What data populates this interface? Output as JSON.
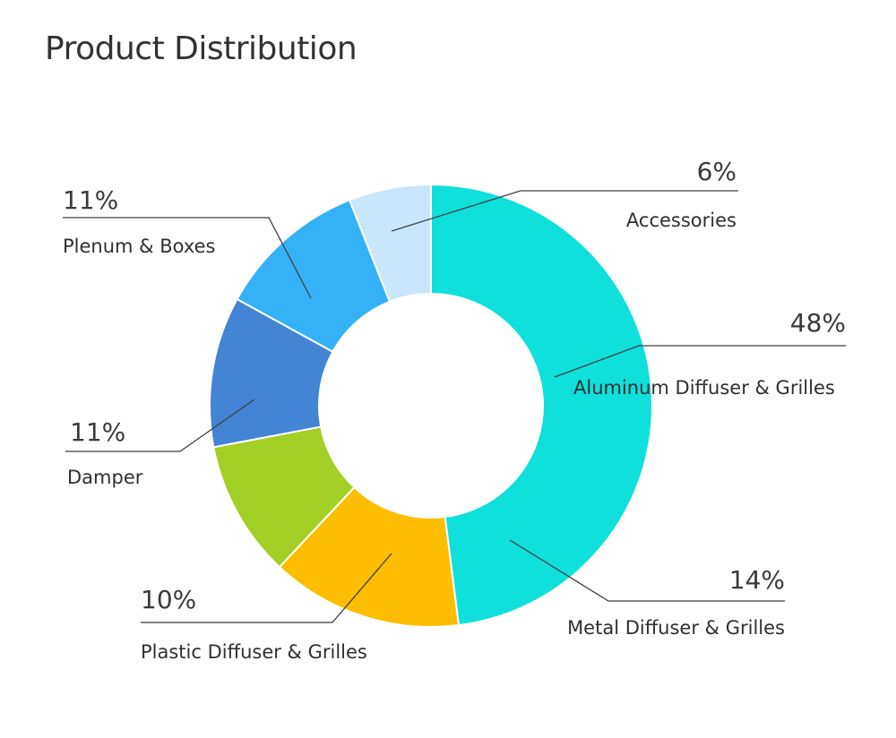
{
  "chart_data": {
    "type": "pie",
    "variant": "donut",
    "title": "Product Distribution",
    "slices": [
      {
        "label": "Aluminum Diffuser & Grilles",
        "percent_label": "48%",
        "value": 48,
        "color": "#0fe0dc"
      },
      {
        "label": "Metal Diffuser & Grilles",
        "percent_label": "14%",
        "value": 14,
        "color": "#fdbd00"
      },
      {
        "label": "Plastic Diffuser & Grilles",
        "percent_label": "10%",
        "value": 10,
        "color": "#a4cf27"
      },
      {
        "label": "Damper",
        "percent_label": "11%",
        "value": 11,
        "color": "#4385d4"
      },
      {
        "label": "Plenum & Boxes",
        "percent_label": "11%",
        "value": 11,
        "color": "#35b2f7"
      },
      {
        "label": "Accessories",
        "percent_label": "6%",
        "value": 6,
        "color": "#c9e6fb"
      }
    ],
    "legend": "none",
    "labels": "outside with leader lines"
  }
}
